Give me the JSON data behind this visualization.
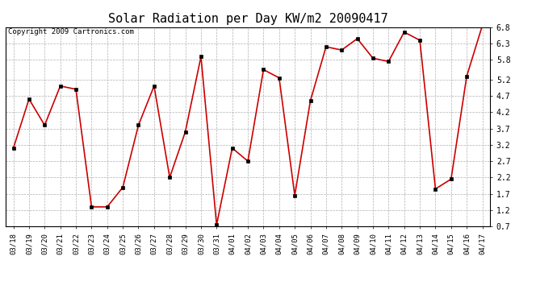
{
  "title": "Solar Radiation per Day KW/m2 20090417",
  "copyright": "Copyright 2009 Cartronics.com",
  "labels": [
    "03/18",
    "03/19",
    "03/20",
    "03/21",
    "03/22",
    "03/23",
    "03/24",
    "03/25",
    "03/26",
    "03/27",
    "03/28",
    "03/29",
    "03/30",
    "03/31",
    "04/01",
    "04/02",
    "04/03",
    "04/04",
    "04/05",
    "04/06",
    "04/07",
    "04/08",
    "04/09",
    "04/10",
    "04/11",
    "04/12",
    "04/13",
    "04/14",
    "04/15",
    "04/16",
    "04/17"
  ],
  "values": [
    3.1,
    4.6,
    3.8,
    5.0,
    4.9,
    1.3,
    1.3,
    1.9,
    3.8,
    5.0,
    2.2,
    3.6,
    5.9,
    0.75,
    3.1,
    2.7,
    5.5,
    5.25,
    1.65,
    4.55,
    6.2,
    6.1,
    6.45,
    5.85,
    5.75,
    6.65,
    6.4,
    1.85,
    2.15,
    5.3,
    6.85
  ],
  "line_color": "#cc0000",
  "marker_color": "#000000",
  "bg_color": "#ffffff",
  "grid_color": "#b0b0b0",
  "ylim": [
    0.7,
    6.8
  ],
  "yticks": [
    0.7,
    1.2,
    1.7,
    2.2,
    2.7,
    3.2,
    3.7,
    4.2,
    4.7,
    5.2,
    5.8,
    6.3,
    6.8
  ],
  "title_fontsize": 11,
  "copyright_fontsize": 6.5,
  "tick_fontsize": 6.5,
  "ytick_fontsize": 7
}
